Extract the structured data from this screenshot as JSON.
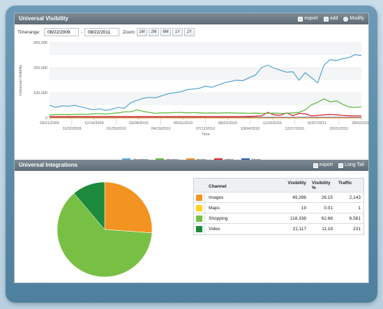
{
  "top_panel": {
    "title": "Universal Visibility",
    "actions": [
      {
        "label": "export",
        "icon": "export-icon"
      },
      {
        "label": "add",
        "icon": "add-icon"
      },
      {
        "label": "Modify",
        "icon": "modify-icon"
      }
    ],
    "timerange_label": "Timerange:",
    "date_from": "08/22/2009",
    "date_sep": "-",
    "date_to": "08/22/2011",
    "zoom_label": "Zoom:",
    "zoom_options": [
      "1M",
      "2M",
      "6M",
      "1Y",
      "2Y"
    ]
  },
  "bottom_panel": {
    "title": "Universal Integrations",
    "actions": [
      {
        "label": "export",
        "icon": "export-icon"
      },
      {
        "label": "Long Tail",
        "icon": "long-tail-icon"
      }
    ]
  },
  "colors": {
    "shopping": "#5aa9cf",
    "images": "#64b947",
    "maps": "#f39321",
    "video": "#e0262b",
    "blogs": "#2f5db8",
    "pie_images": "#f39321",
    "pie_maps": "#ffd21f",
    "pie_shopping": "#78c043",
    "pie_video": "#1d8a3d"
  },
  "chart_data": [
    {
      "type": "line",
      "title": "",
      "xlabel": "Time",
      "ylabel": "Universal Visibility",
      "ylim": [
        0,
        300000
      ],
      "y_ticks": [
        "0",
        "100,000",
        "200,000",
        "300,000"
      ],
      "x_ticks_top": [
        "09/21/2009",
        "12/14/2009",
        "03/08/2010",
        "05/31/2010",
        "08/23/2010",
        "11/15/2010",
        "02/07/2011",
        "05/02/2011"
      ],
      "x_ticks_bottom": [
        "11/02/2009",
        "01/25/2010",
        "04/19/2010",
        "07/12/2010",
        "10/04/2010",
        "12/27/2010",
        "03/21/2011"
      ],
      "x_range": [
        "09/21/2009",
        "05/02/2011"
      ],
      "grid": true,
      "legend_position": "bottom",
      "series": [
        {
          "name": "shopping",
          "values": [
            50000,
            42000,
            48000,
            46000,
            50000,
            44000,
            38000,
            32000,
            36000,
            30000,
            34000,
            42000,
            38000,
            60000,
            70000,
            78000,
            82000,
            80000,
            88000,
            96000,
            100000,
            104000,
            112000,
            115000,
            118000,
            126000,
            122000,
            130000,
            140000,
            145000,
            150000,
            148000,
            160000,
            170000,
            200000,
            210000,
            198000,
            190000,
            182000,
            184000,
            150000,
            180000,
            160000,
            140000,
            210000,
            232000,
            228000,
            236000,
            240000,
            252000,
            248000
          ]
        },
        {
          "name": "images",
          "values": [
            12000,
            13000,
            14000,
            13000,
            14000,
            15000,
            14000,
            16000,
            17000,
            15000,
            18000,
            20000,
            24000,
            24000,
            32000,
            26000,
            22000,
            18000,
            20000,
            20000,
            21000,
            22000,
            20000,
            21000,
            20000,
            19000,
            20000,
            19000,
            20000,
            20000,
            19000,
            19000,
            18000,
            19000,
            18000,
            18000,
            19000,
            18000,
            18000,
            20000,
            22000,
            32000,
            52000,
            62000,
            76000,
            64000,
            68000,
            54000,
            44000,
            42000,
            44000
          ]
        },
        {
          "name": "maps",
          "values": [
            0,
            0,
            0,
            0,
            0,
            0,
            0,
            0,
            0,
            0,
            0,
            0,
            0,
            0,
            0,
            0,
            0,
            0,
            0,
            0,
            0,
            0,
            0,
            0,
            0,
            0,
            0,
            0,
            0,
            0,
            0,
            0,
            0,
            0,
            0,
            0,
            0,
            0,
            0,
            0,
            0,
            0,
            0,
            0,
            0,
            0,
            0,
            0,
            0,
            0,
            0
          ]
        },
        {
          "name": "video",
          "values": [
            5000,
            5000,
            5000,
            5000,
            5000,
            5000,
            5000,
            5000,
            5000,
            5000,
            5000,
            5000,
            5000,
            5000,
            5000,
            5000,
            5000,
            5000,
            5000,
            5000,
            5000,
            5000,
            5000,
            5000,
            5000,
            5000,
            5000,
            5000,
            5000,
            5000,
            5000,
            5000,
            6000,
            7000,
            8000,
            22000,
            12000,
            10000,
            20000,
            9000,
            18000,
            16000,
            8000,
            10000,
            12000,
            14000,
            12000,
            10000,
            9000,
            8000,
            8000
          ]
        },
        {
          "name": "blogs",
          "values": [
            2000,
            2000,
            2000,
            2000,
            2000,
            2000,
            2000,
            2000,
            2000,
            2000,
            2000,
            2000,
            2000,
            2000,
            2000,
            2000,
            2000,
            2000,
            2000,
            2000,
            2000,
            2000,
            2000,
            2000,
            2000,
            2000,
            2000,
            2000,
            2000,
            2000,
            2000,
            2000,
            2000,
            2000,
            2000,
            2000,
            2000,
            2000,
            2000,
            2000,
            2000,
            2000,
            2000,
            2000,
            2000,
            2000,
            2000,
            2000,
            2000,
            2000,
            2000
          ]
        }
      ]
    },
    {
      "type": "pie",
      "categories": [
        "Images",
        "Maps",
        "Shopping",
        "Video"
      ],
      "values": [
        26.15,
        0.01,
        62.66,
        11.18
      ]
    },
    {
      "type": "table",
      "columns": [
        "Channel",
        "Visibility",
        "Visibility %",
        "Traffic"
      ],
      "rows": [
        {
          "channel": "Images",
          "visibility": "49,398",
          "pct": "26.15",
          "traffic": "2,143",
          "color": "#f39321"
        },
        {
          "channel": "Maps",
          "visibility": "19",
          "pct": "0.01",
          "traffic": "1",
          "color": "#ffd21f"
        },
        {
          "channel": "Shopping",
          "visibility": "118,338",
          "pct": "62.66",
          "traffic": "6,561",
          "color": "#78c043"
        },
        {
          "channel": "Video",
          "visibility": "21,117",
          "pct": "11.18",
          "traffic": "231",
          "color": "#1d8a3d"
        }
      ]
    }
  ]
}
